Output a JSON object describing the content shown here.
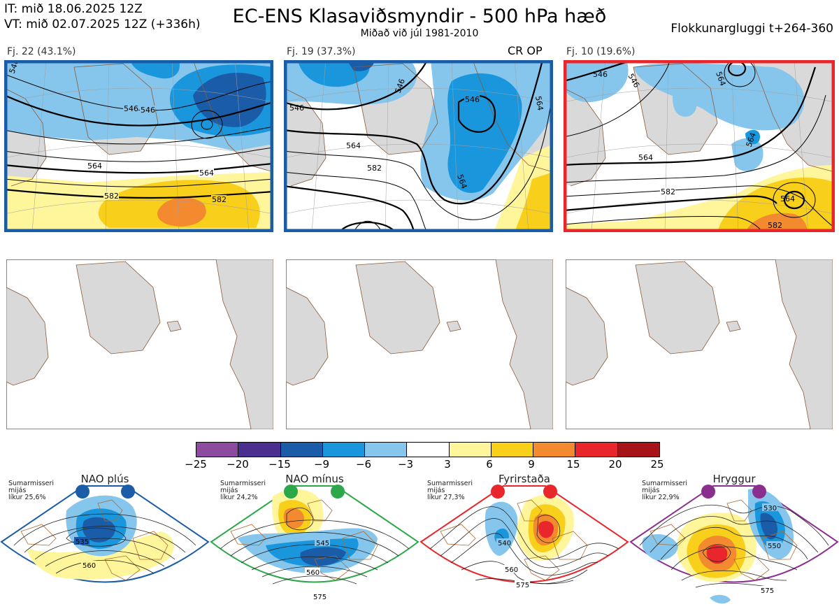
{
  "header": {
    "it_line": "IT: mið 18.06.2025 12Z",
    "vt_line": "VT: mið 02.07.2025 12Z  (+336h)",
    "title": "EC-ENS Klasaviðsmyndir - 500 hPa hæð",
    "subtitle": "Miðað við júl 1981-2010",
    "window": "Flokkunargluggi t+264-360"
  },
  "clusters": [
    {
      "label": "Fj. 22 (43.1%)",
      "frame_color": "#1a5ca8",
      "contours": [
        "546",
        "546",
        "564",
        "564",
        "582",
        "582",
        "546"
      ]
    },
    {
      "label": "Fj. 19 (37.3%)",
      "frame_color": "#1a5ca8",
      "contours": [
        "546",
        "546",
        "546",
        "564",
        "582",
        "564",
        "564"
      ],
      "op_label": "CR OP"
    },
    {
      "label": "Fj. 10 (19.6%)",
      "frame_color": "#e8262b",
      "contours": [
        "546",
        "546",
        "564",
        "564",
        "582",
        "564",
        "582",
        "564"
      ]
    }
  ],
  "colorbar": {
    "ticks": [
      "−25",
      "−20",
      "−15",
      "−9",
      "−6",
      "−3",
      "3",
      "6",
      "9",
      "15",
      "20",
      "25"
    ],
    "colors": [
      "#8c4b9e",
      "#4a2f8f",
      "#1a5ca8",
      "#1a97dc",
      "#86c6ec",
      "#ffffff",
      "#fff59a",
      "#f8cf1a",
      "#f48a30",
      "#e8262b",
      "#a6141a"
    ]
  },
  "regimes": [
    {
      "name": "NAO plús",
      "season": "Sumarmisseri",
      "region": "mijás",
      "probability": "líkur 25,6%",
      "color": "#1a5ca8",
      "contours": [
        "535",
        "560"
      ]
    },
    {
      "name": "NAO mínus",
      "season": "Sumarmisseri",
      "region": "mijás",
      "probability": "líkur 24,2%",
      "color": "#2ca84a",
      "contours": [
        "545",
        "560",
        "575"
      ]
    },
    {
      "name": "Fyrirstaða",
      "season": "Sumarmisseri",
      "region": "mijás",
      "probability": "líkur 27,3%",
      "color": "#e8262b",
      "contours": [
        "540",
        "560",
        "575"
      ]
    },
    {
      "name": "Hryggur",
      "season": "Sumarmisseri",
      "region": "mijás",
      "probability": "líkur 22,9%",
      "color": "#8b2f8f",
      "contours": [
        "530",
        "550",
        "575"
      ]
    }
  ]
}
